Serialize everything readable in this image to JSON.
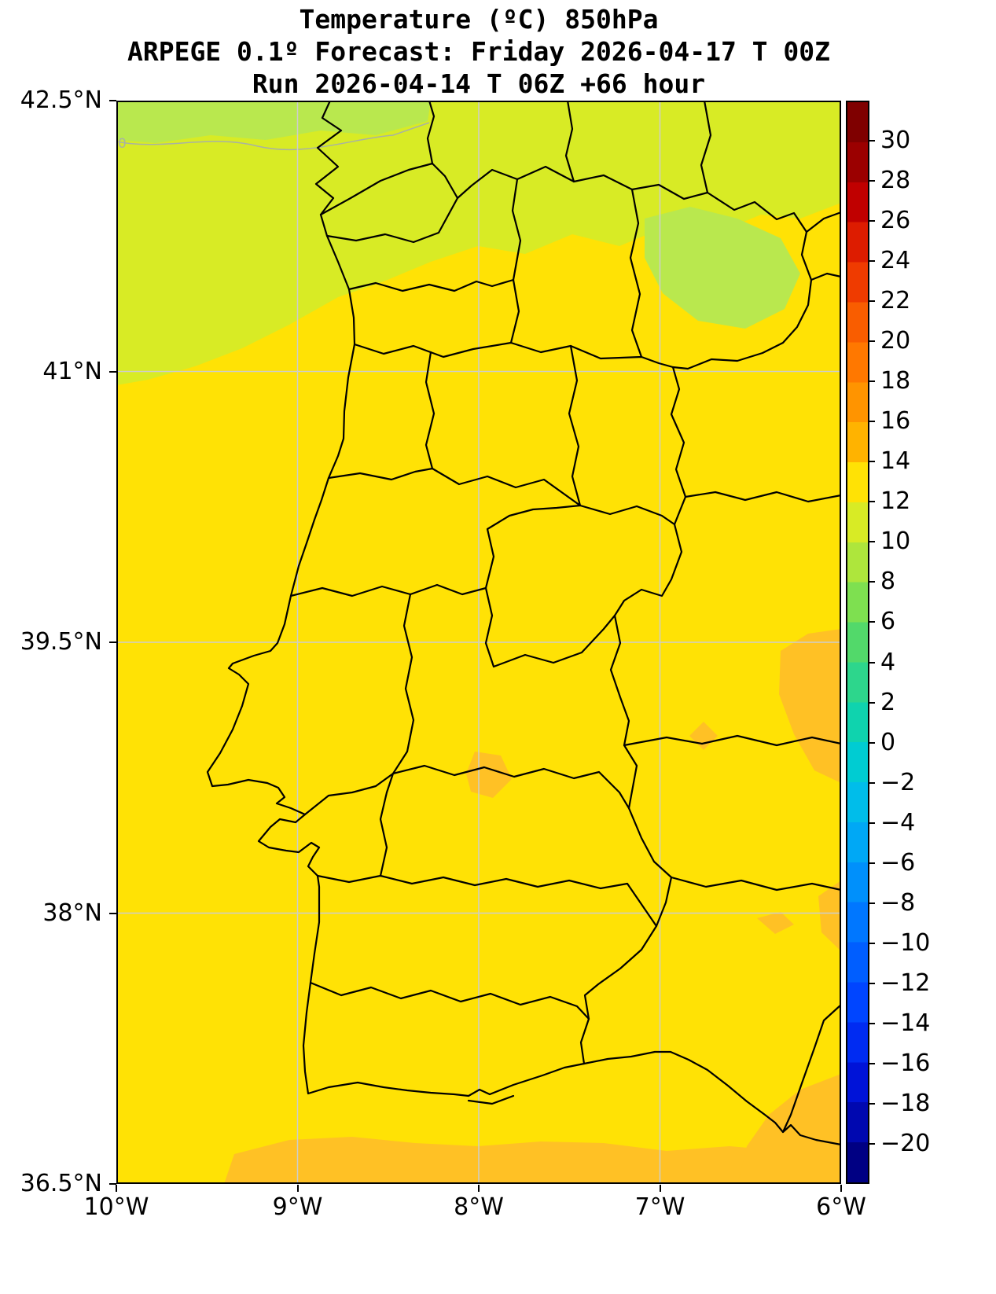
{
  "figure": {
    "title_line1": "Temperature (ºC) 850hPa",
    "title_line2": "ARPEGE 0.1º Forecast: Friday 2026-04-17 T 00Z",
    "title_line3": "Run 2026-04-14 T 06Z +66 hour"
  },
  "colors": {
    "background": "#ffffff",
    "grid": "#cdcdcd",
    "boundary": "#000000",
    "frame": "#000000",
    "contour_line": "#a8b2a4"
  },
  "chart_data": {
    "type": "heatmap",
    "title": "Temperature (ºC) 850hPa",
    "model": "ARPEGE 0.1º",
    "forecast_valid": "Friday 2026-04-17 T 00Z",
    "run": "2026-04-14 T 06Z",
    "lead_time": "+66 hour",
    "region": "Portugal and western Iberia",
    "grid": true,
    "x_axis": {
      "tick_labels": [
        "10°W",
        "9°W",
        "8°W",
        "7°W",
        "6°W"
      ],
      "tick_lon": [
        -10,
        -9,
        -8,
        -7,
        -6
      ],
      "range": [
        -10,
        -6
      ]
    },
    "y_axis": {
      "tick_labels": [
        "42.5°N",
        "41°N",
        "39.5°N",
        "38°N",
        "36.5°N"
      ],
      "tick_lat": [
        42.5,
        41,
        39.5,
        38,
        36.5
      ],
      "range": [
        36.5,
        42.5
      ]
    },
    "colorbar": {
      "units": "ºC",
      "range": [
        -22,
        32
      ],
      "tick_values": [
        30,
        28,
        26,
        24,
        22,
        20,
        18,
        16,
        14,
        12,
        10,
        8,
        6,
        4,
        2,
        0,
        -2,
        -4,
        -6,
        -8,
        -10,
        -12,
        -14,
        -16,
        -18,
        -20
      ],
      "tick_labels": [
        "30",
        "28",
        "26",
        "24",
        "22",
        "20",
        "18",
        "16",
        "14",
        "12",
        "10",
        "8",
        "6",
        "4",
        "2",
        "0",
        "−2",
        "−4",
        "−6",
        "−8",
        "−10",
        "−12",
        "−14",
        "−16",
        "−18",
        "−20"
      ],
      "band_colors_top_to_bottom": [
        "#7f0000",
        "#9b0000",
        "#c00000",
        "#dd1c00",
        "#ef3b00",
        "#f95d00",
        "#ff7800",
        "#ff9400",
        "#ffb300",
        "#ffe205",
        "#d8eb25",
        "#aee63c",
        "#7ee050",
        "#52d96a",
        "#2dd68c",
        "#0fd3ae",
        "#00ccd2",
        "#00bdea",
        "#00a8f5",
        "#0090fb",
        "#0077ff",
        "#005eff",
        "#0045ff",
        "#002bf2",
        "#0013d8",
        "#0008b0",
        "#000083"
      ]
    },
    "field": {
      "band_fill_colors": {
        "band-8-10": "#b9e84e",
        "band-10-12": "#d8eb25",
        "band-12-14": "#ffe205",
        "band-14-16": "#ffc125"
      },
      "observations": [
        "Most of the map is in the 12–14 ºC band (yellow)",
        "Northern strip (Galicia, northern Portugal, NW Atlantic) is in the 10–12 ºC band",
        "Small 8–10 ºC areas at the far north-west corner and in the north-east",
        "14–16 ºC band along the southern coast / Gulf of Cádiz and in patches over eastern areas"
      ],
      "contour_label": "0"
    },
    "map_overlay": "Black coastline, Spain–Portugal border, Portuguese district and Spanish province boundaries"
  }
}
